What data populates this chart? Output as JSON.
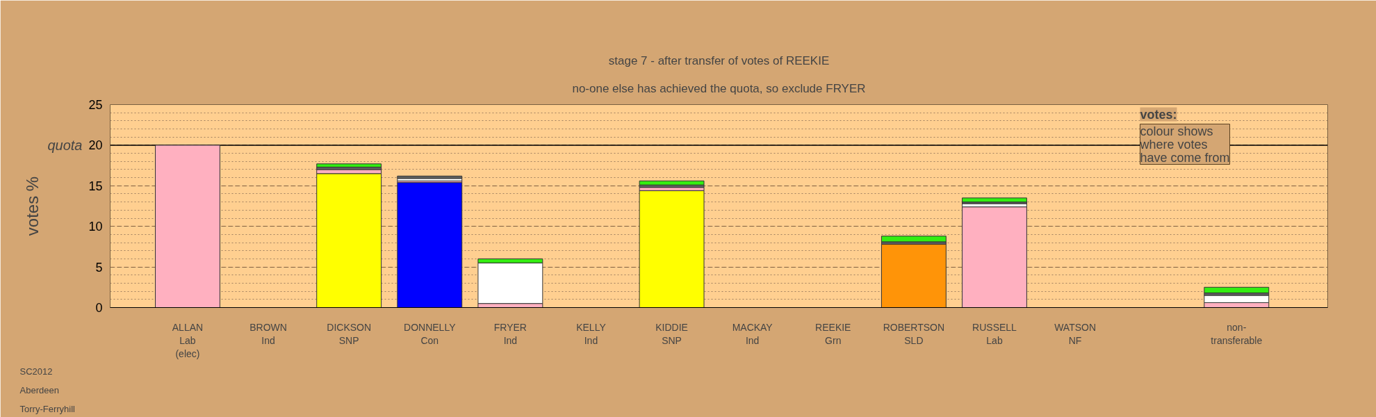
{
  "chart_data": {
    "type": "bar",
    "stacked": true,
    "title": "stage 7 - after transfer of votes of REEKIE",
    "subtitle": "no-one else has achieved the quota, so exclude FRYER",
    "ylabel": "votes %",
    "categories": [
      "ALLAN\nLab\n(elec)",
      "BROWN\nInd",
      "DICKSON\nSNP",
      "DONNELLY\nCon",
      "FRYER\nInd",
      "KELLY\nInd",
      "KIDDIE\nSNP",
      "MACKAY\nInd",
      "REEKIE\nGrn",
      "ROBERTSON\nSLD",
      "RUSSELL\nLab",
      "WATSON\nNF",
      null,
      "non-\ntransferable"
    ],
    "series": [
      {
        "color": "#ffff00",
        "values": [
          null,
          null,
          16.5,
          null,
          null,
          null,
          14.4,
          null,
          null,
          null,
          null,
          null,
          null,
          null
        ]
      },
      {
        "color": "#0000ff",
        "values": [
          null,
          null,
          null,
          15.4,
          null,
          null,
          null,
          null,
          null,
          null,
          null,
          null,
          null,
          null
        ]
      },
      {
        "color": "#ff9408",
        "values": [
          null,
          null,
          null,
          null,
          null,
          null,
          null,
          null,
          null,
          7.8,
          null,
          null,
          null,
          null
        ]
      },
      {
        "color": "#ffb0c0",
        "values": [
          20.0,
          0,
          0.5,
          0.2,
          0.5,
          0,
          0.4,
          0,
          0,
          null,
          12.4,
          0,
          null,
          0.6
        ]
      },
      {
        "color": "#ffffff",
        "values": [
          null,
          null,
          null,
          0.3,
          5.0,
          null,
          null,
          null,
          null,
          null,
          0.4,
          null,
          null,
          0.9
        ]
      },
      {
        "color": "#606060",
        "values": [
          null,
          null,
          0.3,
          0.3,
          null,
          null,
          0.3,
          null,
          null,
          0.3,
          0.2,
          null,
          null,
          0.3
        ]
      },
      {
        "color": "#33ee11",
        "values": [
          null,
          null,
          0.4,
          null,
          0.5,
          null,
          0.5,
          null,
          null,
          0.7,
          0.5,
          null,
          null,
          0.7
        ]
      }
    ],
    "ylim": [
      0,
      25
    ],
    "yticks": [
      0,
      5,
      10,
      15,
      20,
      25
    ],
    "grid": "y",
    "legend": false,
    "ref_lines": [
      {
        "axis": "y",
        "value": 20,
        "label": "quota"
      }
    ],
    "annotations": [
      "votes:",
      "colour shows where votes have come from",
      "SC2012",
      "Aberdeen",
      "Torry-Ferryhill"
    ]
  }
}
